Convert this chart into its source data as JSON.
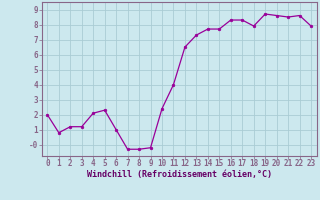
{
  "x": [
    0,
    1,
    2,
    3,
    4,
    5,
    6,
    7,
    8,
    9,
    10,
    11,
    12,
    13,
    14,
    15,
    16,
    17,
    18,
    19,
    20,
    21,
    22,
    23
  ],
  "y": [
    2.0,
    0.8,
    1.2,
    1.2,
    2.1,
    2.3,
    1.0,
    -0.3,
    -0.3,
    -0.2,
    2.4,
    4.0,
    6.5,
    7.3,
    7.7,
    7.7,
    8.3,
    8.3,
    7.9,
    8.7,
    8.6,
    8.5,
    8.6,
    7.9
  ],
  "line_color": "#990099",
  "marker_color": "#990099",
  "bg_color": "#cce8ee",
  "grid_color": "#aaccd4",
  "xlabel": "Windchill (Refroidissement éolien,°C)",
  "xlim": [
    -0.5,
    23.5
  ],
  "ylim": [
    -0.75,
    9.5
  ],
  "yticks": [
    0,
    1,
    2,
    3,
    4,
    5,
    6,
    7,
    8,
    9
  ],
  "ytick_labels": [
    "-0",
    "1",
    "2",
    "3",
    "4",
    "5",
    "6",
    "7",
    "8",
    "9"
  ],
  "xticks": [
    0,
    1,
    2,
    3,
    4,
    5,
    6,
    7,
    8,
    9,
    10,
    11,
    12,
    13,
    14,
    15,
    16,
    17,
    18,
    19,
    20,
    21,
    22,
    23
  ],
  "xtick_labels": [
    "0",
    "1",
    "2",
    "3",
    "4",
    "5",
    "6",
    "7",
    "8",
    "9",
    "10",
    "11",
    "12",
    "13",
    "14",
    "15",
    "16",
    "17",
    "18",
    "19",
    "20",
    "21",
    "22",
    "23"
  ],
  "tick_color": "#660066",
  "font_family": "monospace",
  "tick_fontsize": 5.5,
  "xlabel_fontsize": 6.0
}
